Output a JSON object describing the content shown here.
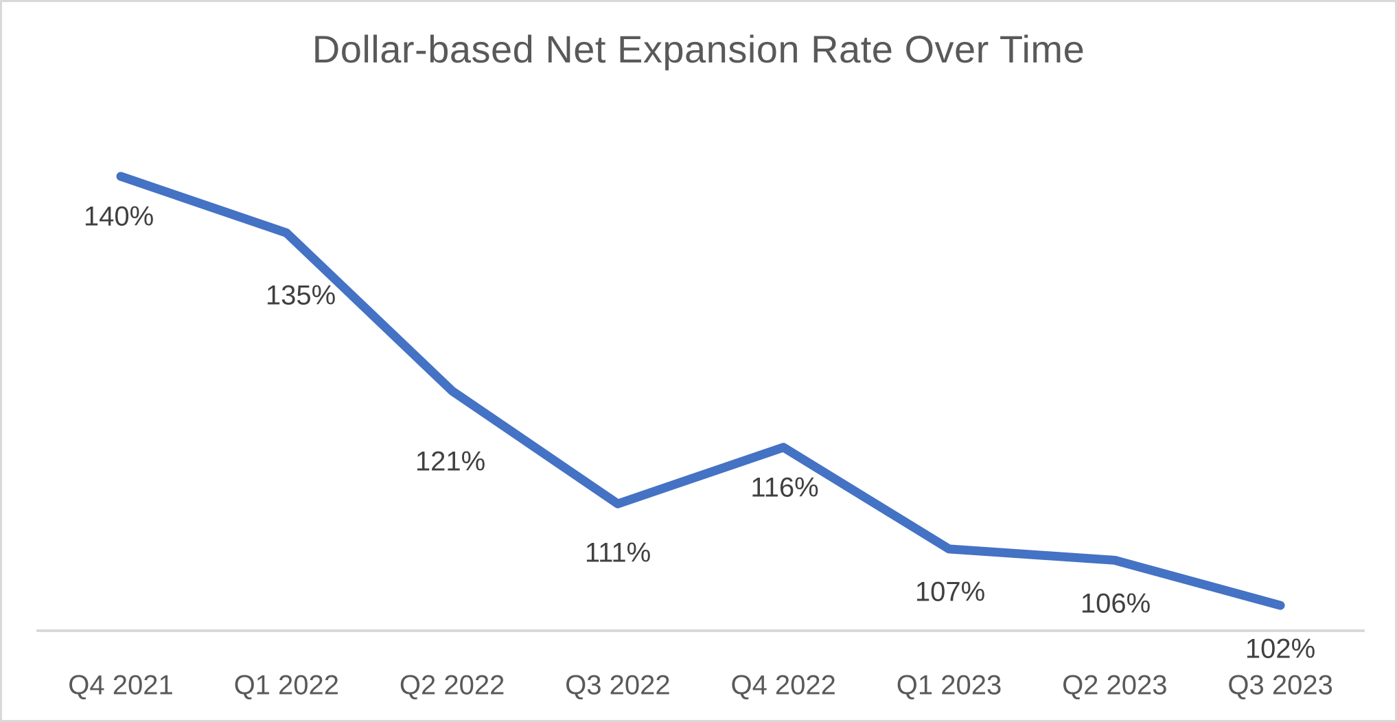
{
  "chart_data": {
    "type": "line",
    "title": "Dollar-based Net Expansion Rate Over Time",
    "categories": [
      "Q4 2021",
      "Q1 2022",
      "Q2 2022",
      "Q3 2022",
      "Q4 2022",
      "Q1 2023",
      "Q2 2023",
      "Q3 2023"
    ],
    "values": [
      140,
      135,
      121,
      111,
      116,
      107,
      106,
      102
    ],
    "data_labels": [
      "140%",
      "135%",
      "121%",
      "111%",
      "116%",
      "107%",
      "106%",
      "102%"
    ],
    "xlabel": "",
    "ylabel": "",
    "ylim": [
      100,
      145
    ],
    "grid": false,
    "legend": false,
    "colors": {
      "series_line": "#4472C4",
      "axis_line": "#d9d9d9",
      "title_text": "#595959",
      "category_text": "#595959",
      "data_label_text": "#404040",
      "frame_border": "#d9d9d9",
      "background": "#ffffff"
    }
  }
}
